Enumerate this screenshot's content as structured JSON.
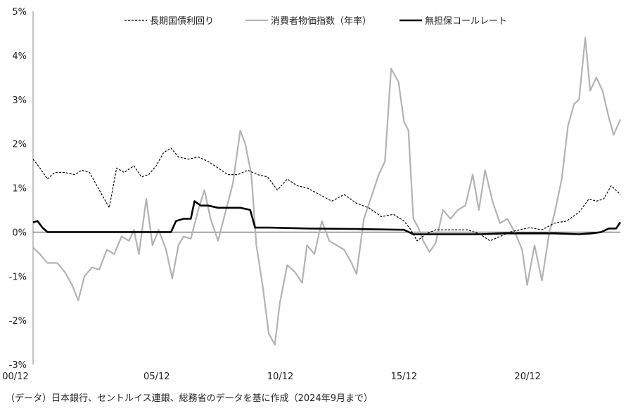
{
  "chart_data": {
    "type": "line",
    "title": "",
    "xlabel": "",
    "ylabel": "",
    "x_tick_labels": [
      "00/12",
      "05/12",
      "10/12",
      "15/12",
      "20/12"
    ],
    "y_tick_labels": [
      "5%",
      "4%",
      "3%",
      "2%",
      "1%",
      "0%",
      "-1%",
      "-2%",
      "-3%"
    ],
    "ylim": [
      -3,
      5
    ],
    "xlim": [
      2000.92,
      2024.67
    ],
    "grid": false,
    "legend_position": "top-center",
    "source_note": "（データ）日本銀行、セントルイス連銀、総務省のデータを基に作成（2024年9月まで）",
    "series": [
      {
        "name": "長期国債利回り",
        "style": "dashed",
        "color": "#000000",
        "points": [
          [
            2000.92,
            1.65
          ],
          [
            2001.2,
            1.45
          ],
          [
            2001.5,
            1.2
          ],
          [
            2001.8,
            1.35
          ],
          [
            2002.2,
            1.35
          ],
          [
            2002.6,
            1.3
          ],
          [
            2002.9,
            1.4
          ],
          [
            2003.2,
            1.35
          ],
          [
            2003.5,
            1.05
          ],
          [
            2003.8,
            0.75
          ],
          [
            2004.0,
            0.55
          ],
          [
            2004.3,
            1.45
          ],
          [
            2004.6,
            1.35
          ],
          [
            2005.0,
            1.5
          ],
          [
            2005.3,
            1.25
          ],
          [
            2005.6,
            1.3
          ],
          [
            2005.9,
            1.5
          ],
          [
            2006.2,
            1.8
          ],
          [
            2006.5,
            1.9
          ],
          [
            2006.8,
            1.7
          ],
          [
            2007.2,
            1.65
          ],
          [
            2007.6,
            1.7
          ],
          [
            2008.0,
            1.6
          ],
          [
            2008.4,
            1.45
          ],
          [
            2008.8,
            1.3
          ],
          [
            2009.2,
            1.3
          ],
          [
            2009.6,
            1.4
          ],
          [
            2010.0,
            1.3
          ],
          [
            2010.4,
            1.25
          ],
          [
            2010.8,
            0.95
          ],
          [
            2011.2,
            1.2
          ],
          [
            2011.6,
            1.05
          ],
          [
            2012.0,
            1.0
          ],
          [
            2012.5,
            0.85
          ],
          [
            2013.0,
            0.7
          ],
          [
            2013.5,
            0.85
          ],
          [
            2014.0,
            0.65
          ],
          [
            2014.5,
            0.55
          ],
          [
            2015.0,
            0.35
          ],
          [
            2015.5,
            0.4
          ],
          [
            2015.92,
            0.25
          ],
          [
            2016.2,
            0.05
          ],
          [
            2016.45,
            -0.2
          ],
          [
            2016.8,
            -0.05
          ],
          [
            2017.2,
            0.05
          ],
          [
            2017.6,
            0.05
          ],
          [
            2018.0,
            0.05
          ],
          [
            2018.5,
            0.05
          ],
          [
            2019.0,
            -0.05
          ],
          [
            2019.4,
            -0.2
          ],
          [
            2019.8,
            -0.1
          ],
          [
            2020.2,
            0.0
          ],
          [
            2020.6,
            0.05
          ],
          [
            2021.0,
            0.1
          ],
          [
            2021.5,
            0.05
          ],
          [
            2022.0,
            0.2
          ],
          [
            2022.5,
            0.25
          ],
          [
            2023.0,
            0.45
          ],
          [
            2023.4,
            0.75
          ],
          [
            2023.7,
            0.7
          ],
          [
            2024.0,
            0.75
          ],
          [
            2024.3,
            1.05
          ],
          [
            2024.67,
            0.85
          ]
        ]
      },
      {
        "name": "消費者物価指数（年率）",
        "style": "solid",
        "color": "#b3b3b3",
        "points": [
          [
            2000.92,
            -0.35
          ],
          [
            2001.2,
            -0.5
          ],
          [
            2001.5,
            -0.7
          ],
          [
            2001.9,
            -0.7
          ],
          [
            2002.2,
            -0.9
          ],
          [
            2002.5,
            -1.2
          ],
          [
            2002.75,
            -1.55
          ],
          [
            2003.0,
            -1.0
          ],
          [
            2003.3,
            -0.8
          ],
          [
            2003.6,
            -0.85
          ],
          [
            2003.9,
            -0.4
          ],
          [
            2004.2,
            -0.5
          ],
          [
            2004.5,
            -0.1
          ],
          [
            2004.8,
            -0.2
          ],
          [
            2005.0,
            0.05
          ],
          [
            2005.2,
            -0.5
          ],
          [
            2005.5,
            0.75
          ],
          [
            2005.75,
            -0.3
          ],
          [
            2006.0,
            0.05
          ],
          [
            2006.3,
            -0.4
          ],
          [
            2006.55,
            -1.05
          ],
          [
            2006.8,
            -0.3
          ],
          [
            2007.0,
            -0.1
          ],
          [
            2007.3,
            -0.15
          ],
          [
            2007.6,
            0.5
          ],
          [
            2007.85,
            0.95
          ],
          [
            2008.1,
            0.3
          ],
          [
            2008.4,
            -0.2
          ],
          [
            2008.7,
            0.45
          ],
          [
            2009.0,
            1.1
          ],
          [
            2009.3,
            2.3
          ],
          [
            2009.5,
            2.0
          ],
          [
            2009.75,
            1.3
          ],
          [
            2009.95,
            -0.3
          ],
          [
            2010.2,
            -1.2
          ],
          [
            2010.45,
            -2.3
          ],
          [
            2010.7,
            -2.55
          ],
          [
            2010.9,
            -1.6
          ],
          [
            2011.2,
            -0.75
          ],
          [
            2011.5,
            -0.9
          ],
          [
            2011.8,
            -1.15
          ],
          [
            2012.0,
            -0.3
          ],
          [
            2012.3,
            -0.5
          ],
          [
            2012.6,
            0.25
          ],
          [
            2012.9,
            -0.2
          ],
          [
            2013.2,
            -0.3
          ],
          [
            2013.5,
            -0.4
          ],
          [
            2013.8,
            -0.7
          ],
          [
            2014.0,
            -0.95
          ],
          [
            2014.3,
            0.3
          ],
          [
            2014.6,
            0.8
          ],
          [
            2014.9,
            1.3
          ],
          [
            2015.15,
            1.6
          ],
          [
            2015.4,
            3.7
          ],
          [
            2015.7,
            3.4
          ],
          [
            2015.92,
            2.5
          ],
          [
            2016.1,
            2.3
          ],
          [
            2016.3,
            0.3
          ],
          [
            2016.5,
            0.1
          ],
          [
            2016.7,
            -0.2
          ],
          [
            2016.95,
            -0.45
          ],
          [
            2017.2,
            -0.25
          ],
          [
            2017.5,
            0.5
          ],
          [
            2017.8,
            0.3
          ],
          [
            2018.1,
            0.5
          ],
          [
            2018.4,
            0.6
          ],
          [
            2018.7,
            1.3
          ],
          [
            2018.95,
            0.5
          ],
          [
            2019.2,
            1.4
          ],
          [
            2019.5,
            0.7
          ],
          [
            2019.8,
            0.2
          ],
          [
            2020.1,
            0.3
          ],
          [
            2020.4,
            0.0
          ],
          [
            2020.7,
            -0.4
          ],
          [
            2020.9,
            -1.2
          ],
          [
            2021.2,
            -0.3
          ],
          [
            2021.5,
            -1.1
          ],
          [
            2021.8,
            0.0
          ],
          [
            2022.0,
            0.4
          ],
          [
            2022.3,
            1.2
          ],
          [
            2022.55,
            2.4
          ],
          [
            2022.8,
            2.9
          ],
          [
            2023.0,
            3.0
          ],
          [
            2023.25,
            4.4
          ],
          [
            2023.45,
            3.2
          ],
          [
            2023.7,
            3.5
          ],
          [
            2023.95,
            3.2
          ],
          [
            2024.2,
            2.6
          ],
          [
            2024.4,
            2.2
          ],
          [
            2024.67,
            2.55
          ]
        ]
      },
      {
        "name": "無担保コールレート",
        "style": "solid-bold",
        "color": "#000000",
        "points": [
          [
            2000.92,
            0.22
          ],
          [
            2001.1,
            0.25
          ],
          [
            2001.3,
            0.1
          ],
          [
            2001.5,
            0.0
          ],
          [
            2002.0,
            0.0
          ],
          [
            2004.0,
            0.0
          ],
          [
            2006.0,
            0.0
          ],
          [
            2006.5,
            0.0
          ],
          [
            2006.7,
            0.25
          ],
          [
            2007.0,
            0.3
          ],
          [
            2007.3,
            0.3
          ],
          [
            2007.45,
            0.7
          ],
          [
            2007.7,
            0.6
          ],
          [
            2008.0,
            0.6
          ],
          [
            2008.4,
            0.55
          ],
          [
            2008.8,
            0.55
          ],
          [
            2009.3,
            0.55
          ],
          [
            2009.7,
            0.5
          ],
          [
            2009.9,
            0.1
          ],
          [
            2010.5,
            0.1
          ],
          [
            2012.0,
            0.08
          ],
          [
            2014.0,
            0.07
          ],
          [
            2015.92,
            0.05
          ],
          [
            2016.3,
            -0.05
          ],
          [
            2017.0,
            -0.05
          ],
          [
            2018.0,
            -0.05
          ],
          [
            2019.0,
            -0.05
          ],
          [
            2020.0,
            -0.03
          ],
          [
            2021.0,
            -0.03
          ],
          [
            2022.0,
            -0.03
          ],
          [
            2023.0,
            -0.05
          ],
          [
            2023.5,
            -0.03
          ],
          [
            2023.9,
            0.0
          ],
          [
            2024.2,
            0.08
          ],
          [
            2024.5,
            0.08
          ],
          [
            2024.67,
            0.22
          ]
        ]
      }
    ]
  }
}
